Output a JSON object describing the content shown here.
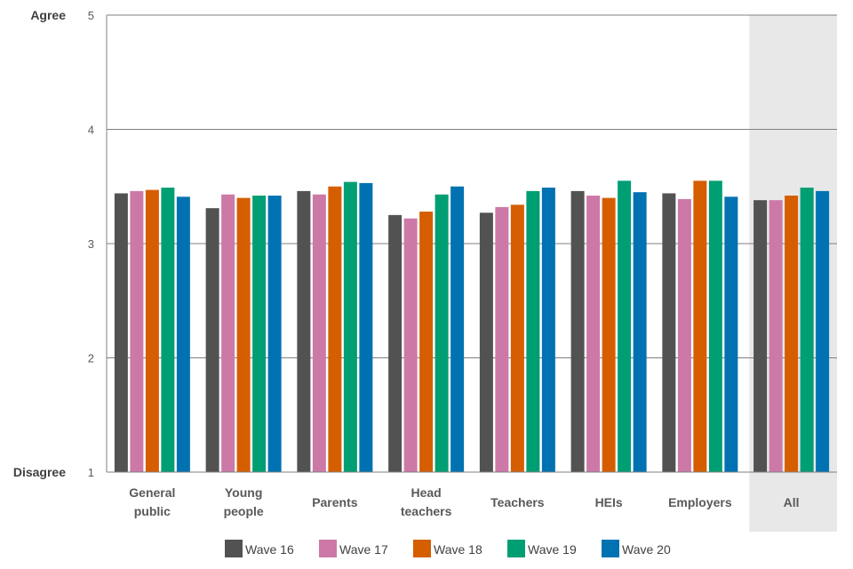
{
  "chart_data": {
    "type": "bar",
    "title": "",
    "xlabel": "",
    "ylabel": "",
    "ylim": [
      1,
      5
    ],
    "yticks": [
      1,
      2,
      3,
      4,
      5
    ],
    "y_end_labels": {
      "bottom": "Disagree",
      "top": "Agree"
    },
    "categories": [
      [
        "General",
        "public"
      ],
      [
        "Young",
        "people"
      ],
      [
        "Parents"
      ],
      [
        "Head",
        "teachers"
      ],
      [
        "Teachers"
      ],
      [
        "HEIs"
      ],
      [
        "Employers"
      ],
      [
        "All"
      ]
    ],
    "highlighted_category": "All",
    "highlight_color": "#e8e8e8",
    "grid": true,
    "legend_position": "bottom",
    "series": [
      {
        "name": "Wave 16",
        "color": "#525252",
        "values": [
          3.44,
          3.31,
          3.46,
          3.25,
          3.27,
          3.46,
          3.44,
          3.38
        ]
      },
      {
        "name": "Wave 17",
        "color": "#cc79a7",
        "values": [
          3.46,
          3.43,
          3.43,
          3.22,
          3.32,
          3.42,
          3.39,
          3.38
        ]
      },
      {
        "name": "Wave 18",
        "color": "#d55e00",
        "values": [
          3.47,
          3.4,
          3.5,
          3.28,
          3.34,
          3.4,
          3.55,
          3.42
        ]
      },
      {
        "name": "Wave 19",
        "color": "#009e73",
        "values": [
          3.49,
          3.42,
          3.54,
          3.43,
          3.46,
          3.55,
          3.55,
          3.49
        ]
      },
      {
        "name": "Wave 20",
        "color": "#0072b2",
        "values": [
          3.41,
          3.42,
          3.53,
          3.5,
          3.49,
          3.45,
          3.41,
          3.46
        ]
      }
    ]
  }
}
